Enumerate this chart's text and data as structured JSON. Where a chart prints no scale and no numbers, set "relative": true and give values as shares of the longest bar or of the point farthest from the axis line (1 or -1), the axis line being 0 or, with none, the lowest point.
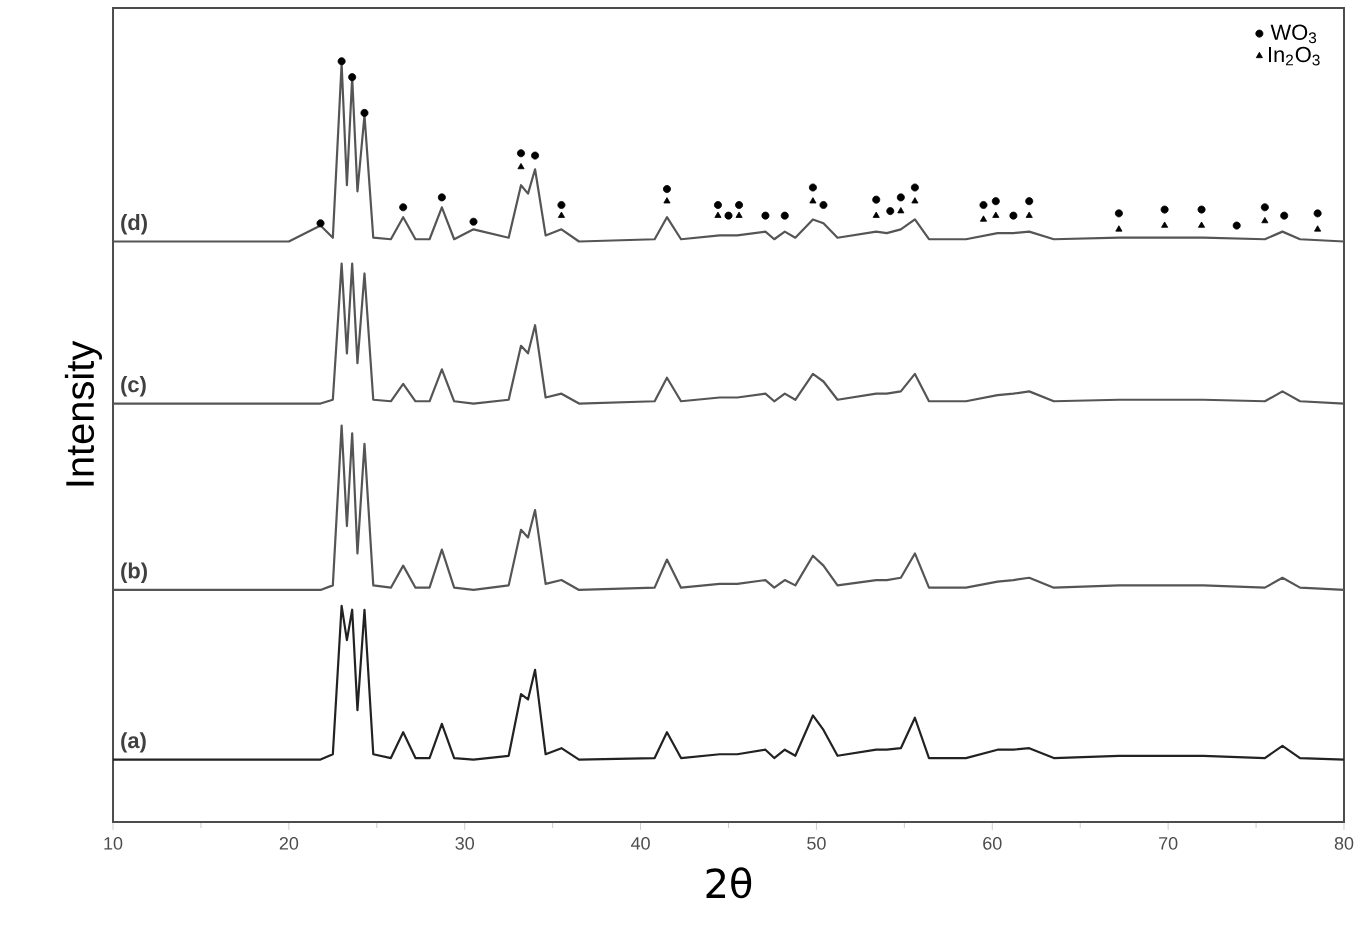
{
  "chart_data": {
    "type": "line",
    "relative": true,
    "xlabel": "2θ",
    "ylabel": "Intensity",
    "xlim": [
      10,
      80
    ],
    "xticks": [
      10,
      20,
      30,
      40,
      50,
      60,
      70,
      80
    ],
    "grid": false,
    "legend": "top right",
    "x": [
      10,
      20,
      21.8,
      22.5,
      23.0,
      23.3,
      23.6,
      23.9,
      24.3,
      24.8,
      25.8,
      26.5,
      27.2,
      28.0,
      28.7,
      29.4,
      30.5,
      32.5,
      33.2,
      33.6,
      34.0,
      34.6,
      35.5,
      36.5,
      40.8,
      41.5,
      42.3,
      44.5,
      45.5,
      47.1,
      47.6,
      48.2,
      48.8,
      49.8,
      50.4,
      51.2,
      53.4,
      54.0,
      54.8,
      55.6,
      56.4,
      58.5,
      60.3,
      61.2,
      62.1,
      63.5,
      67.2,
      72,
      75.5,
      76.5,
      77.5,
      80
    ],
    "series": [
      {
        "name": "(d)",
        "color": "#555555",
        "values": [
          0.763,
          0.763,
          0.784,
          0.768,
          0.997,
          0.837,
          0.979,
          0.829,
          0.929,
          0.768,
          0.766,
          0.795,
          0.766,
          0.766,
          0.808,
          0.766,
          0.779,
          0.768,
          0.837,
          0.826,
          0.858,
          0.771,
          0.779,
          0.763,
          0.766,
          0.795,
          0.766,
          0.771,
          0.771,
          0.776,
          0.766,
          0.776,
          0.768,
          0.792,
          0.787,
          0.768,
          0.776,
          0.774,
          0.779,
          0.792,
          0.766,
          0.766,
          0.774,
          0.774,
          0.776,
          0.766,
          0.768,
          0.768,
          0.766,
          0.776,
          0.766,
          0.763
        ]
      },
      {
        "name": "(c)",
        "color": "#555555",
        "values": [
          0.55,
          0.55,
          0.55,
          0.555,
          0.734,
          0.616,
          0.734,
          0.603,
          0.721,
          0.555,
          0.553,
          0.576,
          0.553,
          0.553,
          0.595,
          0.553,
          0.55,
          0.555,
          0.626,
          0.616,
          0.653,
          0.558,
          0.563,
          0.55,
          0.553,
          0.584,
          0.553,
          0.558,
          0.558,
          0.563,
          0.553,
          0.563,
          0.555,
          0.589,
          0.579,
          0.555,
          0.563,
          0.563,
          0.566,
          0.589,
          0.553,
          0.553,
          0.561,
          0.563,
          0.566,
          0.553,
          0.555,
          0.555,
          0.553,
          0.566,
          0.553,
          0.55
        ]
      },
      {
        "name": "(b)",
        "color": "#555555",
        "values": [
          0.305,
          0.305,
          0.305,
          0.311,
          0.521,
          0.389,
          0.511,
          0.353,
          0.497,
          0.311,
          0.308,
          0.337,
          0.308,
          0.308,
          0.358,
          0.308,
          0.305,
          0.311,
          0.384,
          0.374,
          0.41,
          0.313,
          0.318,
          0.305,
          0.308,
          0.345,
          0.308,
          0.313,
          0.313,
          0.318,
          0.308,
          0.318,
          0.311,
          0.35,
          0.337,
          0.311,
          0.318,
          0.318,
          0.321,
          0.353,
          0.308,
          0.308,
          0.316,
          0.318,
          0.321,
          0.308,
          0.311,
          0.311,
          0.308,
          0.321,
          0.308,
          0.305
        ]
      },
      {
        "name": "(a)",
        "color": "#222222",
        "values": [
          0.082,
          0.082,
          0.082,
          0.089,
          0.284,
          0.239,
          0.279,
          0.147,
          0.279,
          0.089,
          0.084,
          0.118,
          0.084,
          0.084,
          0.129,
          0.084,
          0.082,
          0.087,
          0.168,
          0.161,
          0.2,
          0.089,
          0.097,
          0.082,
          0.084,
          0.118,
          0.084,
          0.089,
          0.089,
          0.095,
          0.084,
          0.095,
          0.087,
          0.14,
          0.121,
          0.087,
          0.095,
          0.095,
          0.097,
          0.137,
          0.084,
          0.084,
          0.095,
          0.095,
          0.097,
          0.084,
          0.087,
          0.087,
          0.084,
          0.1,
          0.084,
          0.082
        ]
      },
      {
        "name": "WO$_{3}$",
        "type": "scatter",
        "marker": "circle",
        "color": "#000000",
        "x": [
          21.8,
          23.0,
          23.6,
          24.3,
          26.5,
          28.7,
          30.5,
          33.2,
          34.0,
          35.5,
          41.5,
          44.4,
          45.0,
          45.6,
          47.1,
          48.2,
          49.8,
          50.4,
          53.4,
          54.2,
          54.8,
          55.6,
          59.5,
          60.2,
          61.2,
          62.1,
          67.2,
          69.8,
          71.9,
          73.9,
          75.5,
          76.6,
          78.5
        ],
        "values": [
          0.787,
          1.0,
          0.979,
          0.932,
          0.808,
          0.821,
          0.789,
          0.879,
          0.876,
          0.811,
          0.832,
          0.811,
          0.797,
          0.811,
          0.797,
          0.797,
          0.834,
          0.811,
          0.818,
          0.803,
          0.821,
          0.834,
          0.811,
          0.816,
          0.797,
          0.816,
          0.8,
          0.805,
          0.805,
          0.784,
          0.808,
          0.797,
          0.8
        ]
      },
      {
        "name": "In$_{2}$O$_{3}$",
        "type": "scatter",
        "marker": "triangle",
        "color": "#000000",
        "x": [
          33.2,
          35.5,
          41.5,
          44.4,
          45.6,
          49.8,
          53.4,
          54.8,
          55.6,
          59.5,
          60.2,
          62.1,
          67.2,
          69.8,
          71.9,
          75.5,
          78.5
        ],
        "values": [
          0.861,
          0.797,
          0.816,
          0.797,
          0.797,
          0.816,
          0.797,
          0.803,
          0.816,
          0.792,
          0.797,
          0.797,
          0.779,
          0.784,
          0.784,
          0.79,
          0.779
        ]
      }
    ]
  }
}
